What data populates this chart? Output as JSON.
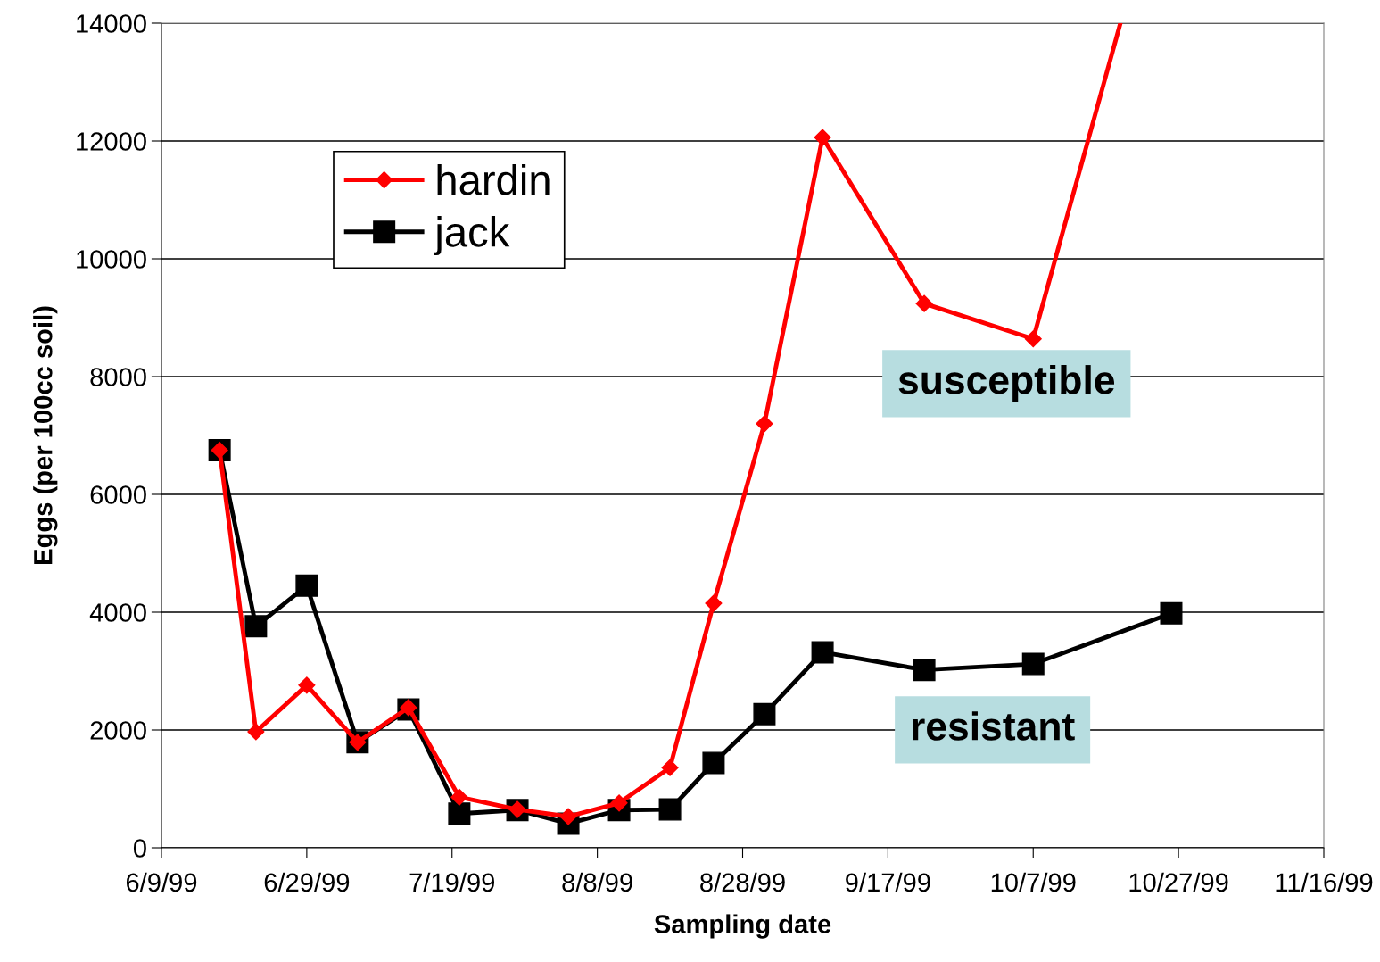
{
  "chart_data": {
    "type": "line",
    "xlabel": "Sampling date",
    "ylabel": "Eggs (per 100cc soil)",
    "x": [
      "1999-06-17",
      "1999-06-22",
      "1999-06-29",
      "1999-07-06",
      "1999-07-13",
      "1999-07-20",
      "1999-07-28",
      "1999-08-04",
      "1999-08-11",
      "1999-08-18",
      "1999-08-24",
      "1999-08-31",
      "1999-09-08",
      "1999-09-22",
      "1999-10-07",
      "1999-10-26"
    ],
    "series": [
      {
        "name": "hardin",
        "color": "#ff0000",
        "marker": "diamond",
        "x": [
          "1999-06-17",
          "1999-06-22",
          "1999-06-29",
          "1999-07-06",
          "1999-07-13",
          "1999-07-20",
          "1999-07-28",
          "1999-08-04",
          "1999-08-11",
          "1999-08-18",
          "1999-08-24",
          "1999-08-31",
          "1999-09-08",
          "1999-09-22",
          "1999-10-07",
          "1999-10-19"
        ],
        "values": [
          6750,
          1970,
          2760,
          1790,
          2380,
          860,
          650,
          530,
          760,
          1360,
          4150,
          7200,
          12060,
          9240,
          8640,
          14000
        ]
      },
      {
        "name": "jack",
        "color": "#000000",
        "marker": "square",
        "values": [
          6750,
          3760,
          4450,
          1790,
          2350,
          580,
          640,
          410,
          640,
          650,
          1440,
          2270,
          3320,
          3020,
          3120,
          3980
        ]
      }
    ],
    "xlim": [
      "1999-06-09",
      "1999-11-16"
    ],
    "xticks": [
      {
        "value": "1999-06-09",
        "label": "6/9/99"
      },
      {
        "value": "1999-06-29",
        "label": "6/29/99"
      },
      {
        "value": "1999-07-19",
        "label": "7/19/99"
      },
      {
        "value": "1999-08-08",
        "label": "8/8/99"
      },
      {
        "value": "1999-08-28",
        "label": "8/28/99"
      },
      {
        "value": "1999-09-17",
        "label": "9/17/99"
      },
      {
        "value": "1999-10-07",
        "label": "10/7/99"
      },
      {
        "value": "1999-10-27",
        "label": "10/27/99"
      },
      {
        "value": "1999-11-16",
        "label": "11/16/99"
      }
    ],
    "ylim": [
      0,
      14000
    ],
    "yticks": [
      0,
      2000,
      4000,
      6000,
      8000,
      10000,
      12000,
      14000
    ],
    "grid": "y",
    "legend": "top left",
    "line_style": "solid",
    "annotations": [
      "susceptible",
      "resistant"
    ]
  }
}
